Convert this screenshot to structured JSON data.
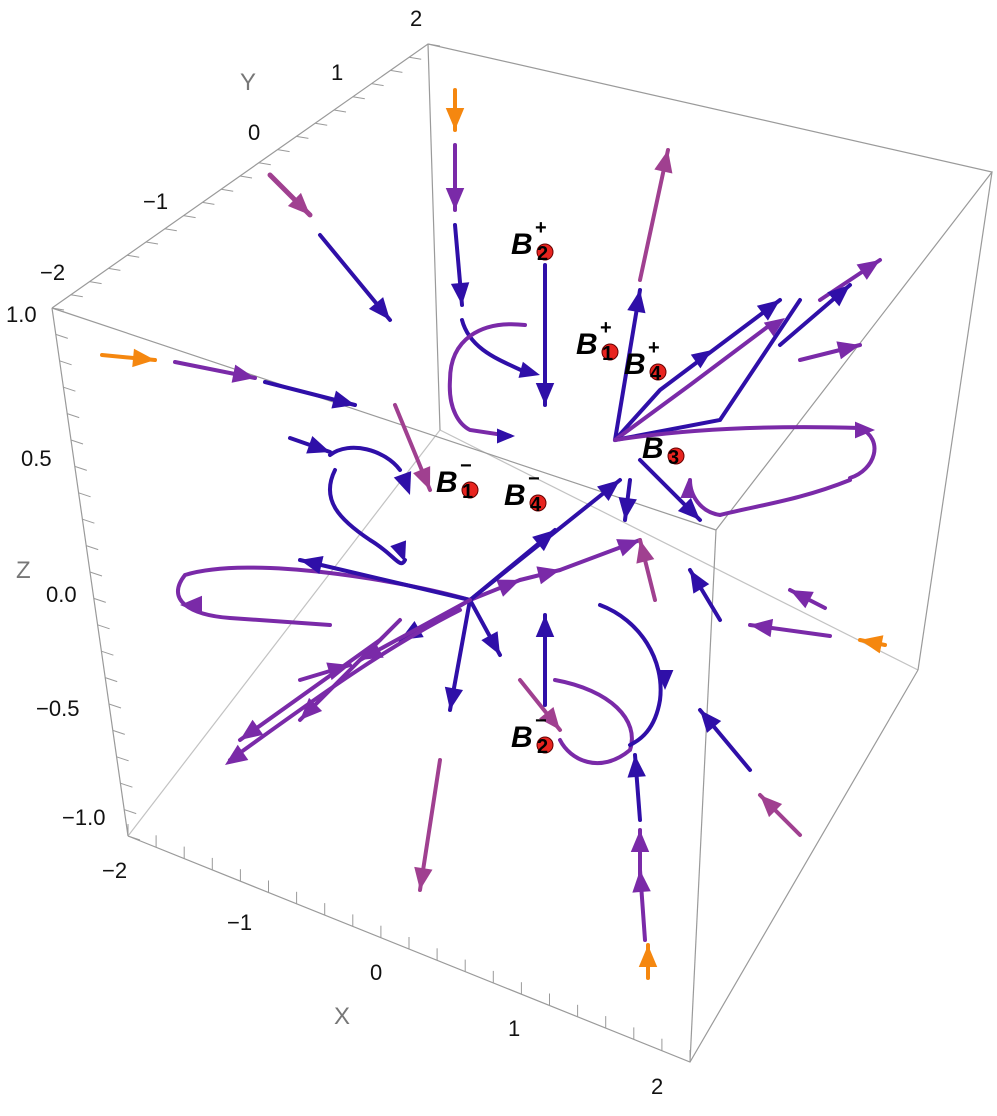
{
  "chart_data": {
    "type": "vector-field-3d",
    "axes": {
      "x": {
        "label": "X",
        "ticks": [
          "−2",
          "−1",
          "0",
          "1",
          "2"
        ],
        "range": [
          -2,
          2
        ]
      },
      "y": {
        "label": "Y",
        "ticks": [
          "−2",
          "−1",
          "0",
          "1",
          "2"
        ],
        "range": [
          -2,
          2
        ]
      },
      "z": {
        "label": "Z",
        "ticks": [
          "1.0",
          "0.5",
          "0.0",
          "−0.5",
          "−1.0"
        ],
        "range": [
          -1,
          1
        ]
      }
    },
    "colors": {
      "fast": "#f5870f",
      "mid": "#a04090",
      "purple": "#7a2aa8",
      "slow": "#2f0fa8",
      "point": "#e8241f"
    },
    "points": [
      {
        "name": "B",
        "sub": "2",
        "sup": "+"
      },
      {
        "name": "B",
        "sub": "1",
        "sup": "+"
      },
      {
        "name": "B",
        "sub": "4",
        "sup": "+"
      },
      {
        "name": "B",
        "sub": "3",
        "sup": ""
      },
      {
        "name": "B",
        "sub": "1",
        "sup": "−"
      },
      {
        "name": "B",
        "sub": "4",
        "sup": "−"
      },
      {
        "name": "B",
        "sub": "2",
        "sup": "−"
      }
    ]
  }
}
